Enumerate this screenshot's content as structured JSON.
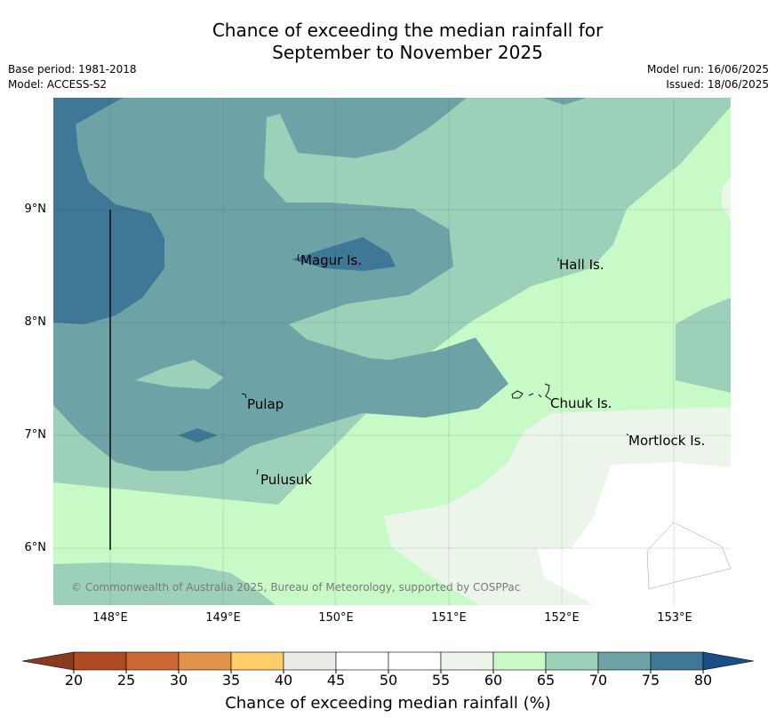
{
  "header": {
    "title_line1": "Chance of exceeding the median rainfall for",
    "title_line2": "September to November 2025",
    "base_period": "Base period: 1981-2018",
    "model": "Model: ACCESS-S2",
    "model_run": "Model run: 16/06/2025",
    "issued": "Issued: 18/06/2025"
  },
  "map": {
    "latitude_labels": [
      "9°N",
      "8°N",
      "7°N",
      "6°N"
    ],
    "longitude_labels": [
      "148°E",
      "149°E",
      "150°E",
      "151°E",
      "152°E",
      "153°E"
    ],
    "places": [
      "Magur Is.",
      "Hall Is.",
      "Pulap",
      "Chuuk Is.",
      "Mortlock Is.",
      "Pulusuk"
    ],
    "copyright": "© Commonwealth of Australia 2025, Bureau of Meteorology, supported by COSPPac"
  },
  "legend": {
    "title": "Chance of exceeding median rainfall (%)",
    "ticks": [
      "20",
      "25",
      "30",
      "35",
      "40",
      "45",
      "50",
      "55",
      "60",
      "65",
      "70",
      "75",
      "80"
    ],
    "colors": {
      "under20": "#8c3a1f",
      "20-25": "#b04a25",
      "25-30": "#cc6733",
      "30-35": "#e1954a",
      "35-40": "#fccd69",
      "40-45": "#ebebe7",
      "45-50": "#ffffff",
      "50-55": "#ffffff",
      "55-60": "#ebf5ea",
      "60-65": "#c8fac8",
      "65-70": "#9dd0b8",
      "70-75": "#6da3a6",
      "75-80": "#3f7796",
      "over80": "#1b4d86"
    }
  }
}
